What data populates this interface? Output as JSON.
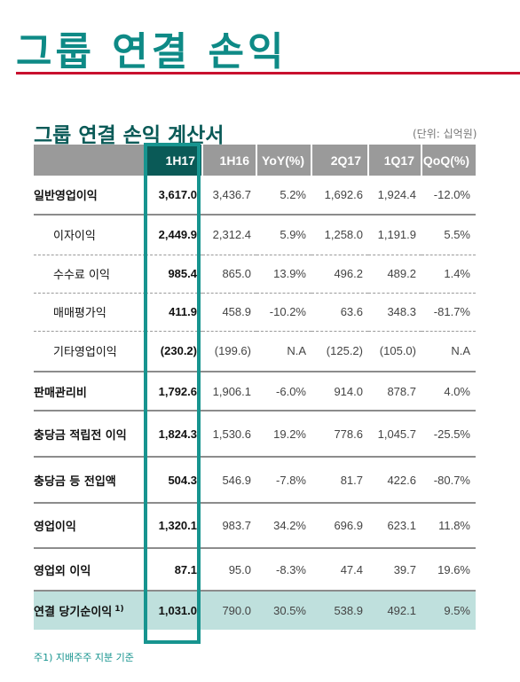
{
  "page_title": "그룹 연결 손익",
  "table_title": "그룹 연결 손익 계산서",
  "unit": "(단위: 십억원)",
  "columns": [
    "1H17",
    "1H16",
    "YoY(%)",
    "2Q17",
    "1Q17",
    "QoQ(%)"
  ],
  "rows": [
    {
      "label": "일반영업이익",
      "values": [
        "3,617.0",
        "3,436.7",
        "5.2%",
        "1,692.6",
        "1,924.4",
        "-12.0%"
      ]
    },
    {
      "label": "이자이익",
      "values": [
        "2,449.9",
        "2,312.4",
        "5.9%",
        "1,258.0",
        "1,191.9",
        "5.5%"
      ]
    },
    {
      "label": "수수료 이익",
      "values": [
        "985.4",
        "865.0",
        "13.9%",
        "496.2",
        "489.2",
        "1.4%"
      ]
    },
    {
      "label": "매매평가익",
      "values": [
        "411.9",
        "458.9",
        "-10.2%",
        "63.6",
        "348.3",
        "-81.7%"
      ]
    },
    {
      "label": "기타영업이익",
      "values": [
        "(230.2)",
        "(199.6)",
        "N.A",
        "(125.2)",
        "(105.0)",
        "N.A"
      ]
    },
    {
      "label": "판매관리비",
      "values": [
        "1,792.6",
        "1,906.1",
        "-6.0%",
        "914.0",
        "878.7",
        "4.0%"
      ]
    },
    {
      "label": "충당금 적립전 이익",
      "values": [
        "1,824.3",
        "1,530.6",
        "19.2%",
        "778.6",
        "1,045.7",
        "-25.5%"
      ]
    },
    {
      "label": "충당금 등 전입액",
      "values": [
        "504.3",
        "546.9",
        "-7.8%",
        "81.7",
        "422.6",
        "-80.7%"
      ]
    },
    {
      "label": "영업이익",
      "values": [
        "1,320.1",
        "983.7",
        "34.2%",
        "696.9",
        "623.1",
        "11.8%"
      ]
    },
    {
      "label": "영업외 이익",
      "values": [
        "87.1",
        "95.0",
        "-8.3%",
        "47.4",
        "39.7",
        "19.6%"
      ]
    },
    {
      "label": "연결 당기순이익",
      "note": "1)",
      "values": [
        "1,031.0",
        "790.0",
        "30.5%",
        "538.9",
        "492.1",
        "9.5%"
      ]
    }
  ],
  "footnote": "주1) 지배주주 지분 기준",
  "colors": {
    "accent": "#0e8a86",
    "header_gray": "#9a9a9a",
    "header_highlight": "#0a5a57",
    "rule_red": "#c8102e",
    "total_row_bg": "#bfe0dd"
  }
}
